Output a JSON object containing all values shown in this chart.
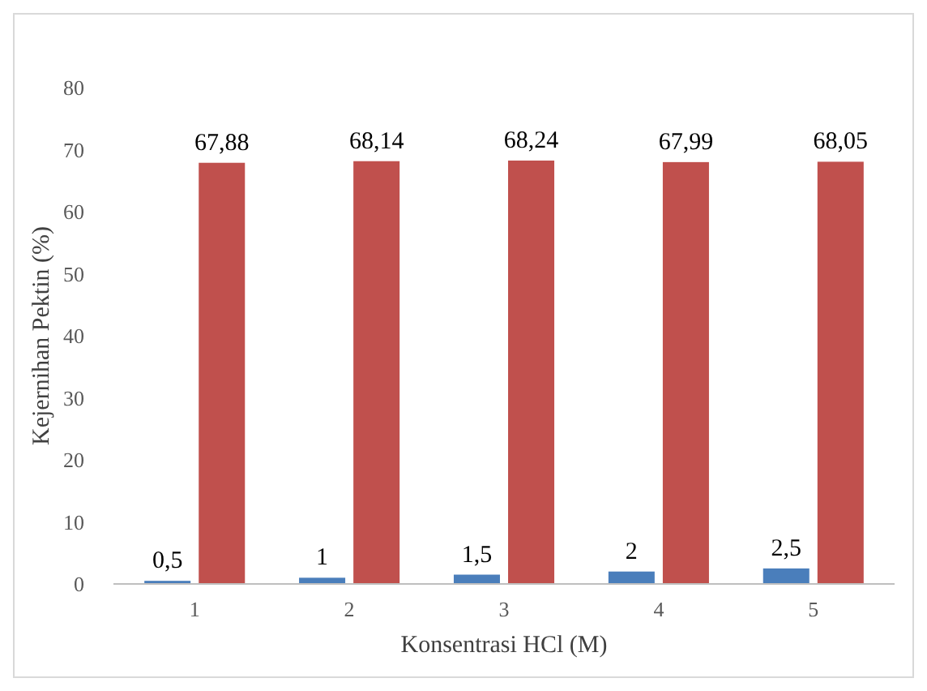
{
  "chart_data": {
    "type": "bar",
    "xlabel": "Konsentrasi HCl (M)",
    "ylabel": "Kejernihan Pektin (%)",
    "categories": [
      "1",
      "2",
      "3",
      "4",
      "5"
    ],
    "series": [
      {
        "color": "#4a7ebb",
        "values": [
          0.5,
          1,
          1.5,
          2,
          2.5
        ],
        "value_labels": [
          "0,5",
          "1",
          "1,5",
          "2",
          "2,5"
        ]
      },
      {
        "color": "#c0504d",
        "values": [
          67.88,
          68.14,
          68.24,
          67.99,
          68.05
        ],
        "value_labels": [
          "67,88",
          "68,14",
          "68,24",
          "67,99",
          "68,05"
        ]
      }
    ],
    "ylim": [
      0,
      80
    ],
    "yticks": [
      0,
      10,
      20,
      30,
      40,
      50,
      60,
      70,
      80
    ],
    "grid": false
  }
}
